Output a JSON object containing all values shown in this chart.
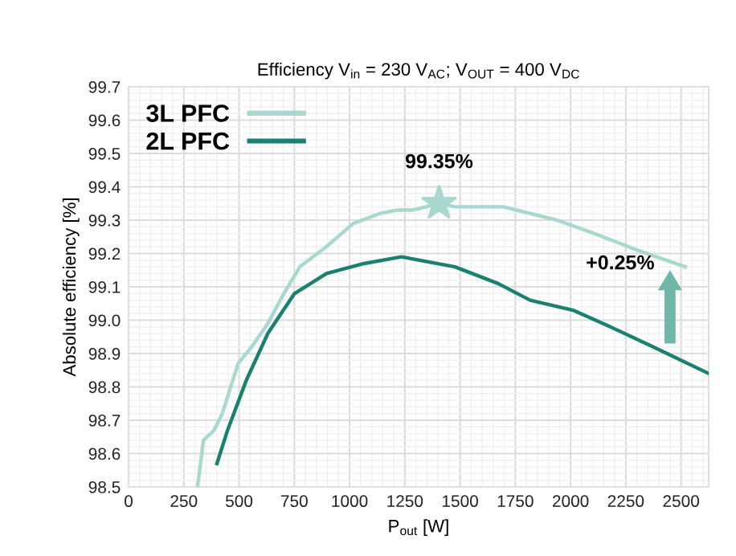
{
  "chart_data": {
    "type": "line",
    "title": "Efficiency V$_{in}$ = 230 V$_{AC}$; V$_{OUT}$ = 400 V$_{DC}$",
    "xlabel": "P$_{out}$ [W]",
    "ylabel": "Absolute efficiency [%]",
    "series": [
      {
        "name": "3L PFC",
        "color": "#a8d8cf",
        "x": [
          312,
          339,
          387,
          424,
          496,
          557,
          630,
          703,
          775,
          894,
          1017,
          1139,
          1211,
          1284,
          1405,
          1477,
          1696,
          1938,
          2108,
          2302,
          2520
        ],
        "values": [
          98.5,
          98.64,
          98.67,
          98.72,
          98.87,
          98.92,
          98.99,
          99.08,
          99.16,
          99.22,
          99.29,
          99.32,
          99.33,
          99.33,
          99.35,
          99.34,
          99.34,
          99.3,
          99.26,
          99.21,
          99.16
        ]
      },
      {
        "name": "2L PFC",
        "color": "#1a8070",
        "x": [
          400,
          448,
          533,
          630,
          751,
          896,
          1066,
          1235,
          1477,
          1672,
          1817,
          2011,
          2180,
          2374,
          2625
        ],
        "values": [
          98.57,
          98.67,
          98.82,
          98.96,
          99.08,
          99.14,
          99.17,
          99.19,
          99.16,
          99.11,
          99.06,
          99.03,
          98.98,
          98.92,
          98.84
        ]
      }
    ],
    "annotations": [
      {
        "text": "99.35%",
        "x": 1405,
        "y": 99.35
      },
      {
        "text": "+0.25%",
        "x": 2450,
        "y": 99.16
      }
    ],
    "xlim": [
      0,
      2625
    ],
    "xticks": [
      0,
      250,
      500,
      750,
      1000,
      1250,
      1500,
      1750,
      2000,
      2250,
      2500
    ],
    "ylim": [
      98.5,
      99.7
    ],
    "yticks": [
      98.5,
      98.6,
      98.7,
      98.8,
      98.9,
      {
        "value": 99,
        "label": "99.0"
      },
      99.1,
      99.2,
      99.3,
      99.4,
      99.5,
      99.6,
      99.7
    ],
    "grid": true,
    "legend": "top left",
    "marker": "none",
    "line_style": "solid"
  }
}
